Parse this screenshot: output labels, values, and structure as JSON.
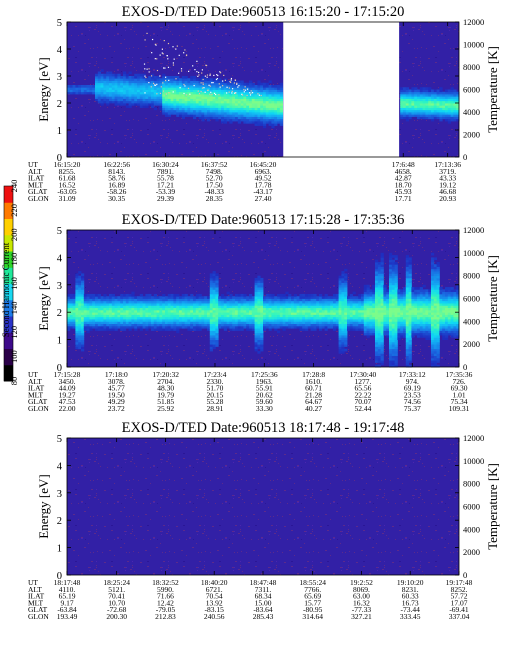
{
  "figure": {
    "colorbar_label": "Second Harmonic Current"
  },
  "colorbar": {
    "ticks": [
      "80",
      "100",
      "120",
      "140",
      "160",
      "180",
      "200",
      "220",
      "240"
    ],
    "stops": [
      "#000000",
      "#2a0048",
      "#3d0a8a",
      "#2a33c8",
      "#1c7be8",
      "#18d8f0",
      "#1fe89a",
      "#2fd52a",
      "#c8e800",
      "#ffd000",
      "#ff7a00",
      "#ee1010"
    ]
  },
  "chart_data": [
    {
      "type": "heatmap",
      "title": "EXOS-D/TED   Date:960513   16:15:20 - 17:15:20",
      "ylabel": "Energy [eV]",
      "y2label": "Temperature [K]",
      "ylim": [
        0,
        5
      ],
      "yticks": [
        "0",
        "1",
        "2",
        "3",
        "4",
        "5"
      ],
      "y2lim": [
        0,
        12000
      ],
      "y2ticks": [
        "0",
        "2000",
        "4000",
        "6000",
        "8000",
        "10000",
        "12000"
      ],
      "x_start": "16:15:20",
      "x_end": "17:15:20",
      "data_gap": [
        "16:48:26",
        "17:06:10"
      ],
      "ion_band": {
        "segments": [
          {
            "from": "16:15:20",
            "to": "16:19:30",
            "center_eV": [
              2.5,
              2.5
            ],
            "width_eV": 0.4,
            "peak": 0.35
          },
          {
            "from": "16:19:30",
            "to": "16:30:00",
            "center_eV": [
              2.6,
              2.4
            ],
            "width_eV": 1.0,
            "peak": 0.65
          },
          {
            "from": "16:30:00",
            "to": "16:48:26",
            "center_eV": [
              2.3,
              1.9
            ],
            "width_eV": 1.2,
            "peak": 1.0
          },
          {
            "from": "17:06:10",
            "to": "17:15:20",
            "center_eV": [
              2.0,
              1.9
            ],
            "width_eV": 0.9,
            "peak": 0.95
          }
        ],
        "scatter_points": {
          "from": "16:27:00",
          "to": "16:45:00",
          "energy_eV": [
            2.3,
            4.9
          ]
        }
      },
      "rows": [
        {
          "label": "UT",
          "values": [
            "16:15:20",
            "16:22:56",
            "16:30:24",
            "16:37:52",
            "16:45:20",
            "",
            "17:6:48",
            "17:13:36"
          ]
        },
        {
          "label": "ALT",
          "values": [
            "8255.",
            "8143.",
            "7891.",
            "7498.",
            "6963.",
            "",
            "4658.",
            "3719."
          ]
        },
        {
          "label": "ILAT",
          "values": [
            "61.68",
            "58.76",
            "55.78",
            "52.70",
            "49.52",
            "",
            "42.87",
            "43.33"
          ]
        },
        {
          "label": "MLT",
          "values": [
            "16.52",
            "16.89",
            "17.21",
            "17.50",
            "17.78",
            "",
            "18.70",
            "19.12"
          ]
        },
        {
          "label": "GLAT",
          "values": [
            "-63.05",
            "-58.26",
            "-53.39",
            "-48.33",
            "-43.17",
            "",
            "45.93",
            "46.68"
          ]
        },
        {
          "label": "GLON",
          "values": [
            "31.09",
            "30.35",
            "29.39",
            "28.35",
            "27.40",
            "",
            "17.71",
            "20.93"
          ]
        }
      ]
    },
    {
      "type": "heatmap",
      "title": "EXOS-D/TED   Date:960513   17:15:28 - 17:35:36",
      "ylabel": "Energy [eV]",
      "y2label": "Temperature [K]",
      "ylim": [
        0,
        5
      ],
      "yticks": [
        "0",
        "1",
        "2",
        "3",
        "4",
        "5"
      ],
      "y2lim": [
        0,
        12000
      ],
      "y2ticks": [
        "0",
        "2000",
        "4000",
        "6000",
        "8000",
        "10000",
        "12000"
      ],
      "x_start": "17:15:28",
      "x_end": "17:35:36",
      "ion_band": {
        "center_eV": 2.0,
        "width_eV": 1.0,
        "peak": 0.95,
        "enhanced_after": "17:30:40",
        "spikes": [
          "17:16:10",
          "17:23:00",
          "17:25:20",
          "17:29:40",
          "17:31:30",
          "17:32:10",
          "17:33:00",
          "17:34:20"
        ]
      },
      "rows": [
        {
          "label": "UT",
          "values": [
            "17:15:28",
            "17:18:0",
            "17:20:32",
            "17:23:4",
            "17:25:36",
            "17:28:8",
            "17:30:40",
            "17:33:12",
            "17:35:36"
          ]
        },
        {
          "label": "ALT",
          "values": [
            "3450.",
            "3078.",
            "2704.",
            "2330.",
            "1963.",
            "1610.",
            "1277.",
            "974.",
            "726."
          ]
        },
        {
          "label": "ILAT",
          "values": [
            "44.09",
            "45.77",
            "48.30",
            "51.70",
            "55.91",
            "60.71",
            "65.56",
            "69.19",
            "69.30"
          ]
        },
        {
          "label": "MLT",
          "values": [
            "19.27",
            "19.50",
            "19.79",
            "20.15",
            "20.62",
            "21.28",
            "22.22",
            "23.53",
            "1.01"
          ]
        },
        {
          "label": "GLAT",
          "values": [
            "47.53",
            "49.29",
            "51.85",
            "55.28",
            "59.60",
            "64.67",
            "70.07",
            "74.56",
            "75.34"
          ]
        },
        {
          "label": "GLON",
          "values": [
            "22.00",
            "23.72",
            "25.92",
            "28.91",
            "33.30",
            "40.27",
            "52.44",
            "75.37",
            "109.31"
          ]
        }
      ]
    },
    {
      "type": "heatmap",
      "title": "EXOS-D/TED   Date:960513   18:17:48 - 19:17:48",
      "ylabel": "Energy [eV]",
      "y2label": "Temperature [K]",
      "ylim": [
        0,
        5
      ],
      "yticks": [
        "0",
        "1",
        "2",
        "3",
        "4",
        "5"
      ],
      "y2lim": [
        0,
        12000
      ],
      "y2ticks": [
        "0",
        "2000",
        "4000",
        "6000",
        "8000",
        "10000",
        "12000"
      ],
      "x_start": "18:17:48",
      "x_end": "19:17:48",
      "ion_band": null,
      "rows": [
        {
          "label": "UT",
          "values": [
            "18:17:48",
            "18:25:24",
            "18:32:52",
            "18:40:20",
            "18:47:48",
            "18:55:24",
            "19:2:52",
            "19:10:20",
            "19:17:48"
          ]
        },
        {
          "label": "ALT",
          "values": [
            "4110.",
            "5121.",
            "5990.",
            "6721.",
            "7311.",
            "7766.",
            "8069.",
            "8231.",
            "8252."
          ]
        },
        {
          "label": "ILAT",
          "values": [
            "65.19",
            "70.41",
            "71.66",
            "70.54",
            "68.34",
            "65.69",
            "63.00",
            "60.33",
            "57.72"
          ]
        },
        {
          "label": "MLT",
          "values": [
            "9.17",
            "10.70",
            "12.42",
            "13.92",
            "15.00",
            "15.77",
            "16.32",
            "16.73",
            "17.07"
          ]
        },
        {
          "label": "GLAT",
          "values": [
            "-63.84",
            "-72.68",
            "-79.05",
            "-83.15",
            "-83.64",
            "-80.95",
            "-77.33",
            "-73.44",
            "-69.41"
          ]
        },
        {
          "label": "GLON",
          "values": [
            "193.49",
            "200.30",
            "212.83",
            "240.56",
            "285.43",
            "314.64",
            "327.21",
            "333.45",
            "337.04"
          ]
        }
      ]
    }
  ]
}
